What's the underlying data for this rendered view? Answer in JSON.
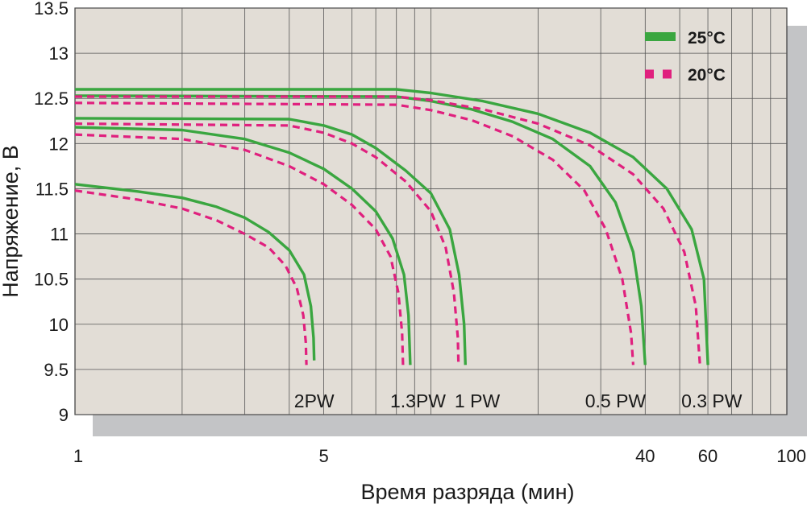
{
  "chart_data": {
    "type": "line",
    "xlabel": "Время разряда (мин)",
    "ylabel": "Напряжение, В",
    "x_scale": "log",
    "xlim": [
      1,
      100
    ],
    "ylim": [
      9,
      13.5
    ],
    "x_ticks": [
      {
        "value": 1,
        "label": "1"
      },
      {
        "value": 5,
        "label": "5"
      },
      {
        "value": 40,
        "label": "40"
      },
      {
        "value": 60,
        "label": "60"
      },
      {
        "value": 100,
        "label": "100"
      }
    ],
    "y_ticks": [
      {
        "value": 13.5,
        "label": "13.5"
      },
      {
        "value": 13,
        "label": "13"
      },
      {
        "value": 12.5,
        "label": "12.5"
      },
      {
        "value": 12,
        "label": "12"
      },
      {
        "value": 11.5,
        "label": "11.5"
      },
      {
        "value": 11,
        "label": "11"
      },
      {
        "value": 10.5,
        "label": "10.5"
      },
      {
        "value": 10,
        "label": "10"
      },
      {
        "value": 9.5,
        "label": "9.5"
      },
      {
        "value": 9,
        "label": "9"
      }
    ],
    "grid": true,
    "legend": {
      "position": "top-right",
      "entries": [
        {
          "label": "25°C",
          "style": "solid",
          "color": "#3aa640"
        },
        {
          "label": "20°C",
          "style": "dashed",
          "color": "#e0207e"
        }
      ]
    },
    "curve_labels": [
      {
        "text": "2PW",
        "x": 4.7,
        "y": 9.15
      },
      {
        "text": "1.3PW",
        "x": 9.2,
        "y": 9.15
      },
      {
        "text": "1 PW",
        "x": 13.5,
        "y": 9.15
      },
      {
        "text": "0.5 PW",
        "x": 33,
        "y": 9.15
      },
      {
        "text": "0.3 PW",
        "x": 61.5,
        "y": 9.15
      }
    ],
    "series": [
      {
        "load": "2PW",
        "temperature": "25°C",
        "style": "solid",
        "color": "#3aa640",
        "points": [
          [
            1,
            11.55
          ],
          [
            1.5,
            11.47
          ],
          [
            2,
            11.4
          ],
          [
            2.5,
            11.3
          ],
          [
            3,
            11.18
          ],
          [
            3.5,
            11.02
          ],
          [
            4,
            10.82
          ],
          [
            4.4,
            10.55
          ],
          [
            4.6,
            10.2
          ],
          [
            4.68,
            9.85
          ],
          [
            4.7,
            9.6
          ]
        ]
      },
      {
        "load": "2PW",
        "temperature": "20°C",
        "style": "dashed",
        "color": "#e0207e",
        "points": [
          [
            1,
            11.48
          ],
          [
            1.5,
            11.38
          ],
          [
            2,
            11.28
          ],
          [
            2.5,
            11.15
          ],
          [
            3,
            11.0
          ],
          [
            3.5,
            10.85
          ],
          [
            3.9,
            10.65
          ],
          [
            4.2,
            10.4
          ],
          [
            4.38,
            10.1
          ],
          [
            4.45,
            9.8
          ],
          [
            4.47,
            9.55
          ]
        ]
      },
      {
        "load": "1.3PW",
        "temperature": "25°C",
        "style": "solid",
        "color": "#3aa640",
        "points": [
          [
            1,
            12.18
          ],
          [
            2,
            12.15
          ],
          [
            3,
            12.05
          ],
          [
            4,
            11.9
          ],
          [
            5,
            11.72
          ],
          [
            6,
            11.5
          ],
          [
            7,
            11.25
          ],
          [
            7.8,
            10.95
          ],
          [
            8.4,
            10.55
          ],
          [
            8.65,
            10.1
          ],
          [
            8.75,
            9.55
          ]
        ]
      },
      {
        "load": "1.3PW",
        "temperature": "20°C",
        "style": "dashed",
        "color": "#e0207e",
        "points": [
          [
            1,
            12.1
          ],
          [
            2,
            12.05
          ],
          [
            3,
            11.93
          ],
          [
            4,
            11.75
          ],
          [
            5,
            11.55
          ],
          [
            6,
            11.32
          ],
          [
            7,
            11.05
          ],
          [
            7.7,
            10.75
          ],
          [
            8.1,
            10.35
          ],
          [
            8.3,
            9.9
          ],
          [
            8.35,
            9.55
          ]
        ]
      },
      {
        "load": "1 PW",
        "temperature": "25°C",
        "style": "solid",
        "color": "#3aa640",
        "points": [
          [
            1,
            12.28
          ],
          [
            4,
            12.27
          ],
          [
            5,
            12.2
          ],
          [
            6,
            12.1
          ],
          [
            7,
            11.95
          ],
          [
            8.5,
            11.7
          ],
          [
            10,
            11.45
          ],
          [
            11.3,
            11.05
          ],
          [
            12,
            10.55
          ],
          [
            12.4,
            10.0
          ],
          [
            12.5,
            9.55
          ]
        ]
      },
      {
        "load": "1 PW",
        "temperature": "20°C",
        "style": "dashed",
        "color": "#e0207e",
        "points": [
          [
            1,
            12.22
          ],
          [
            4,
            12.2
          ],
          [
            5,
            12.12
          ],
          [
            6,
            12.0
          ],
          [
            7,
            11.85
          ],
          [
            8.5,
            11.58
          ],
          [
            10,
            11.25
          ],
          [
            11,
            10.85
          ],
          [
            11.6,
            10.35
          ],
          [
            11.9,
            9.85
          ],
          [
            11.95,
            9.55
          ]
        ]
      },
      {
        "load": "0.5 PW",
        "temperature": "25°C",
        "style": "solid",
        "color": "#3aa640",
        "points": [
          [
            1,
            12.53
          ],
          [
            8,
            12.52
          ],
          [
            10,
            12.47
          ],
          [
            13,
            12.38
          ],
          [
            17,
            12.24
          ],
          [
            22,
            12.05
          ],
          [
            28,
            11.75
          ],
          [
            33,
            11.35
          ],
          [
            37,
            10.8
          ],
          [
            39,
            10.2
          ],
          [
            40,
            9.55
          ]
        ]
      },
      {
        "load": "0.5 PW",
        "temperature": "20°C",
        "style": "dashed",
        "color": "#e0207e",
        "points": [
          [
            1,
            12.45
          ],
          [
            8,
            12.43
          ],
          [
            10,
            12.37
          ],
          [
            13,
            12.26
          ],
          [
            17,
            12.08
          ],
          [
            22,
            11.82
          ],
          [
            27,
            11.48
          ],
          [
            31,
            11.05
          ],
          [
            34.5,
            10.5
          ],
          [
            36.5,
            9.9
          ],
          [
            37,
            9.55
          ]
        ]
      },
      {
        "load": "0.3 PW",
        "temperature": "25°C",
        "style": "solid",
        "color": "#3aa640",
        "points": [
          [
            1,
            12.6
          ],
          [
            8,
            12.6
          ],
          [
            10,
            12.56
          ],
          [
            14,
            12.47
          ],
          [
            20,
            12.33
          ],
          [
            28,
            12.12
          ],
          [
            37,
            11.85
          ],
          [
            46,
            11.5
          ],
          [
            54,
            11.05
          ],
          [
            58.5,
            10.5
          ],
          [
            60,
            9.55
          ]
        ]
      },
      {
        "load": "0.3 PW",
        "temperature": "20°C",
        "style": "dashed",
        "color": "#e0207e",
        "points": [
          [
            1,
            12.52
          ],
          [
            8,
            12.52
          ],
          [
            10,
            12.48
          ],
          [
            14,
            12.38
          ],
          [
            20,
            12.22
          ],
          [
            28,
            11.98
          ],
          [
            37,
            11.66
          ],
          [
            45,
            11.28
          ],
          [
            51.5,
            10.8
          ],
          [
            55.5,
            10.2
          ],
          [
            57,
            9.55
          ]
        ]
      }
    ]
  }
}
